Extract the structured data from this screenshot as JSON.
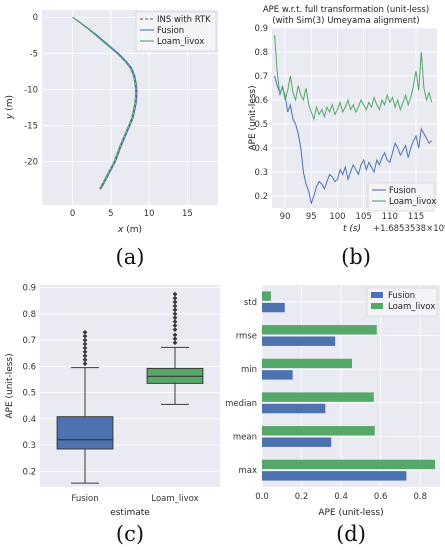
{
  "colors": {
    "blue": "#4c72b0",
    "green": "#55a868",
    "gray": "#555555",
    "grid": "#e3e3ea",
    "bg": "#eaeaf2"
  },
  "panels": {
    "a": "(a)",
    "b": "(b)",
    "c": "(c)",
    "d": "(d)"
  },
  "chart_data": [
    {
      "type": "line",
      "panel": "a",
      "title": "",
      "xlabel": "x (m)",
      "ylabel": "y (m)",
      "xlim": [
        -4,
        19
      ],
      "ylim": [
        -26,
        1
      ],
      "xticks": [
        0,
        5,
        10,
        15
      ],
      "yticks": [
        0,
        -5,
        -10,
        -15,
        -20
      ],
      "legend": {
        "position": "top-right"
      },
      "series": [
        {
          "name": "INS with RTK",
          "style": "dashed",
          "color": "#555555",
          "x": [
            0,
            1,
            2,
            3,
            4,
            5,
            6,
            7,
            7.6,
            8.0,
            8.2,
            8.3,
            8.3,
            8.2,
            8.0,
            7.8,
            7.4,
            7.0,
            6.6,
            6.2,
            5.5,
            4.5,
            3.6
          ],
          "y": [
            0,
            -0.8,
            -1.6,
            -2.4,
            -3.3,
            -4.2,
            -5.1,
            -6.2,
            -7.0,
            -8.0,
            -9.0,
            -10.0,
            -11.0,
            -12.0,
            -13.0,
            -14.0,
            -15.0,
            -16.0,
            -17.0,
            -18.0,
            -20.0,
            -22.0,
            -23.8
          ]
        },
        {
          "name": "Fusion",
          "style": "solid",
          "color": "#4c72b0",
          "x": [
            0,
            1.1,
            2.1,
            3.1,
            4.1,
            5.1,
            6.1,
            7.1,
            7.7,
            8.1,
            8.3,
            8.4,
            8.4,
            8.3,
            8.1,
            7.9,
            7.5,
            7.1,
            6.7,
            6.3,
            5.6,
            4.6,
            3.7
          ],
          "y": [
            0,
            -0.8,
            -1.6,
            -2.4,
            -3.3,
            -4.2,
            -5.1,
            -6.2,
            -7.0,
            -8.0,
            -9.0,
            -10.0,
            -11.0,
            -12.0,
            -13.0,
            -14.0,
            -15.0,
            -16.0,
            -17.0,
            -18.0,
            -20.0,
            -22.0,
            -23.8
          ]
        },
        {
          "name": "Loam_livox",
          "style": "solid",
          "color": "#55a868",
          "x": [
            0,
            1.0,
            2.0,
            2.9,
            3.9,
            4.9,
            5.9,
            6.9,
            7.5,
            7.9,
            8.1,
            8.2,
            8.2,
            8.1,
            7.9,
            7.7,
            7.3,
            6.9,
            6.5,
            6.1,
            5.4,
            4.4,
            3.5
          ],
          "y": [
            0,
            -0.8,
            -1.6,
            -2.4,
            -3.3,
            -4.2,
            -5.1,
            -6.2,
            -7.0,
            -8.0,
            -9.0,
            -10.0,
            -11.0,
            -12.0,
            -13.0,
            -14.0,
            -15.0,
            -16.0,
            -17.0,
            -18.0,
            -20.0,
            -22.0,
            -23.8
          ]
        }
      ]
    },
    {
      "type": "line",
      "panel": "b",
      "title": "APE w.r.t. full transformation (unit-less)",
      "subtitle": "(with Sim(3) Umeyama alignment)",
      "xlabel": "t (s)",
      "x_offset_label": "+1.6853538×10⁹",
      "ylabel": "APE (unit-less)",
      "xlim": [
        87.5,
        119
      ],
      "ylim": [
        0.15,
        0.9
      ],
      "xticks": [
        90,
        95,
        100,
        105,
        110,
        115
      ],
      "yticks": [
        0.2,
        0.3,
        0.4,
        0.5,
        0.6,
        0.7,
        0.8,
        0.9
      ],
      "legend": {
        "position": "bottom-right"
      },
      "series": [
        {
          "name": "Fusion",
          "color": "#4c72b0",
          "x": [
            88,
            88.5,
            89,
            89.5,
            90,
            90.5,
            91,
            91.5,
            92,
            92.5,
            93,
            93.5,
            94,
            94.5,
            95,
            95.5,
            96,
            96.5,
            97,
            97.5,
            98,
            98.5,
            99,
            99.5,
            100,
            100.5,
            101,
            101.5,
            102,
            102.5,
            103,
            103.5,
            104,
            104.5,
            105,
            105.5,
            106,
            106.5,
            107,
            107.5,
            108,
            108.5,
            109,
            109.5,
            110,
            110.5,
            111,
            111.5,
            112,
            112.5,
            113,
            113.5,
            114,
            114.5,
            115,
            115.5,
            116,
            116.5,
            117,
            117.5,
            118
          ],
          "y": [
            0.7,
            0.66,
            0.63,
            0.65,
            0.62,
            0.55,
            0.58,
            0.52,
            0.5,
            0.46,
            0.4,
            0.3,
            0.25,
            0.22,
            0.17,
            0.2,
            0.24,
            0.26,
            0.25,
            0.23,
            0.26,
            0.29,
            0.28,
            0.26,
            0.27,
            0.31,
            0.29,
            0.32,
            0.27,
            0.3,
            0.33,
            0.31,
            0.29,
            0.33,
            0.35,
            0.31,
            0.34,
            0.32,
            0.3,
            0.35,
            0.33,
            0.36,
            0.38,
            0.35,
            0.34,
            0.38,
            0.42,
            0.4,
            0.37,
            0.39,
            0.41,
            0.36,
            0.4,
            0.43,
            0.45,
            0.4,
            0.48,
            0.46,
            0.44,
            0.42,
            0.43
          ]
        },
        {
          "name": "Loam_livox",
          "color": "#55a868",
          "x": [
            88,
            88.5,
            89,
            89.5,
            90,
            90.5,
            91,
            91.5,
            92,
            92.5,
            93,
            93.5,
            94,
            94.5,
            95,
            95.5,
            96,
            96.5,
            97,
            97.5,
            98,
            98.5,
            99,
            99.5,
            100,
            100.5,
            101,
            101.5,
            102,
            102.5,
            103,
            103.5,
            104,
            104.5,
            105,
            105.5,
            106,
            106.5,
            107,
            107.5,
            108,
            108.5,
            109,
            109.5,
            110,
            110.5,
            111,
            111.5,
            112,
            112.5,
            113,
            113.5,
            114,
            114.5,
            115,
            115.5,
            116,
            116.5,
            117,
            117.5,
            118
          ],
          "y": [
            0.87,
            0.72,
            0.62,
            0.66,
            0.6,
            0.64,
            0.7,
            0.63,
            0.6,
            0.66,
            0.62,
            0.6,
            0.65,
            0.58,
            0.55,
            0.52,
            0.57,
            0.54,
            0.56,
            0.53,
            0.57,
            0.55,
            0.58,
            0.54,
            0.56,
            0.59,
            0.55,
            0.57,
            0.6,
            0.56,
            0.58,
            0.55,
            0.57,
            0.6,
            0.58,
            0.56,
            0.59,
            0.57,
            0.61,
            0.58,
            0.56,
            0.6,
            0.58,
            0.62,
            0.59,
            0.61,
            0.57,
            0.6,
            0.56,
            0.59,
            0.62,
            0.58,
            0.61,
            0.66,
            0.72,
            0.64,
            0.8,
            0.65,
            0.6,
            0.63,
            0.59
          ]
        }
      ]
    },
    {
      "type": "box",
      "panel": "c",
      "title": "",
      "xlabel": "estimate",
      "ylabel": "APE (unit-less)",
      "ylim": [
        0.14,
        0.91
      ],
      "yticks": [
        0.2,
        0.3,
        0.4,
        0.5,
        0.6,
        0.7,
        0.8,
        0.9
      ],
      "categories": [
        "Fusion",
        "Loam_livox"
      ],
      "boxes": [
        {
          "name": "Fusion",
          "color": "#4c72b0",
          "whisker_low": 0.155,
          "q1": 0.285,
          "median": 0.32,
          "q3": 0.408,
          "whisker_high": 0.595,
          "outliers": [
            0.61,
            0.625,
            0.64,
            0.655,
            0.67,
            0.685,
            0.7,
            0.715,
            0.73
          ]
        },
        {
          "name": "Loam_livox",
          "color": "#55a868",
          "whisker_low": 0.455,
          "q1": 0.535,
          "median": 0.562,
          "q3": 0.592,
          "whisker_high": 0.672,
          "outliers": [
            0.69,
            0.705,
            0.72,
            0.74,
            0.755,
            0.77,
            0.785,
            0.8,
            0.815,
            0.83,
            0.845,
            0.86,
            0.875
          ]
        }
      ]
    },
    {
      "type": "bar",
      "orientation": "horizontal",
      "panel": "d",
      "title": "",
      "xlabel": "APE (unit-less)",
      "ylabel": "",
      "xlim": [
        0,
        0.9
      ],
      "xticks": [
        0.0,
        0.2,
        0.4,
        0.6,
        0.8
      ],
      "categories": [
        "std",
        "rmse",
        "min",
        "median",
        "mean",
        "max"
      ],
      "legend": {
        "position": "top-right"
      },
      "series": [
        {
          "name": "Fusion",
          "color": "#4c72b0",
          "values": [
            0.115,
            0.37,
            0.155,
            0.32,
            0.35,
            0.73
          ]
        },
        {
          "name": "Loam_livox",
          "color": "#55a868",
          "values": [
            0.045,
            0.58,
            0.455,
            0.565,
            0.57,
            0.875
          ]
        }
      ]
    }
  ]
}
